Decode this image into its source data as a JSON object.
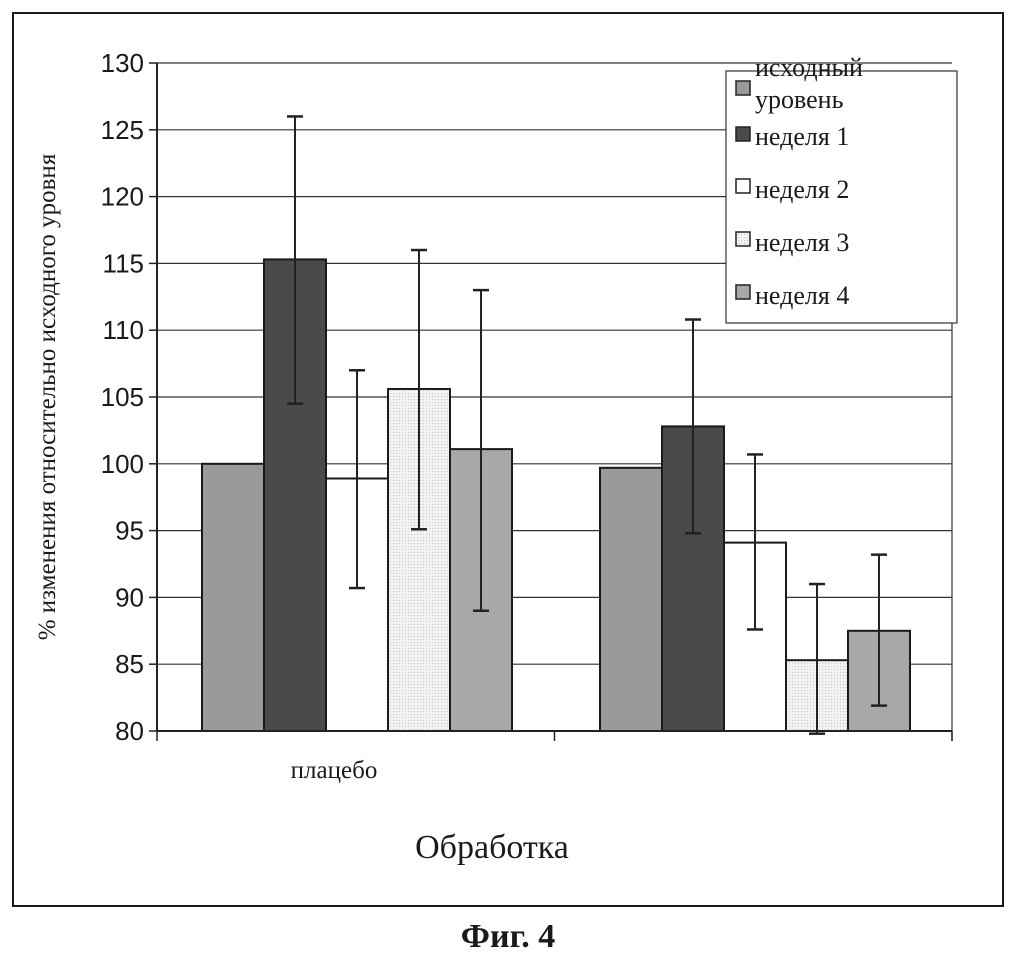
{
  "chart_data": {
    "type": "bar",
    "title": "",
    "xlabel": "Обработка",
    "ylabel": "% изменения относительно исходного уровня",
    "ylim": [
      80,
      130
    ],
    "yticks": [
      "80",
      "85",
      "90",
      "95",
      "100",
      "105",
      "110",
      "115",
      "120",
      "125",
      "130"
    ],
    "grid": true,
    "legend_position": "top-right",
    "categories": [
      "плацебо",
      ""
    ],
    "series": [
      {
        "name": "исходный уровень",
        "color": "#9a9a9a",
        "values": [
          100,
          99.7
        ],
        "error_low": [
          null,
          null
        ],
        "error_high": [
          null,
          null
        ]
      },
      {
        "name": "неделя 1",
        "color": "#4a4a4a",
        "values": [
          115.3,
          102.8
        ],
        "error_low": [
          104.5,
          94.8
        ],
        "error_high": [
          126,
          110.8
        ]
      },
      {
        "name": "неделя 2",
        "color": "#ffffff",
        "values": [
          98.9,
          94.1
        ],
        "error_low": [
          90.7,
          87.6
        ],
        "error_high": [
          107,
          100.7
        ]
      },
      {
        "name": "неделя 3",
        "color": "#ececec",
        "values": [
          105.6,
          85.3
        ],
        "error_low": [
          95.1,
          79.8
        ],
        "error_high": [
          116,
          91
        ]
      },
      {
        "name": "неделя 4",
        "color": "#a8a8a8",
        "values": [
          101.1,
          87.5
        ],
        "error_low": [
          89,
          81.9
        ],
        "error_high": [
          113,
          93.2
        ]
      }
    ],
    "legend_labels": [
      "исходный",
      "уровень",
      "неделя 1",
      "неделя 2",
      "неделя 3",
      "неделя 4"
    ]
  },
  "caption": "Фиг. 4"
}
